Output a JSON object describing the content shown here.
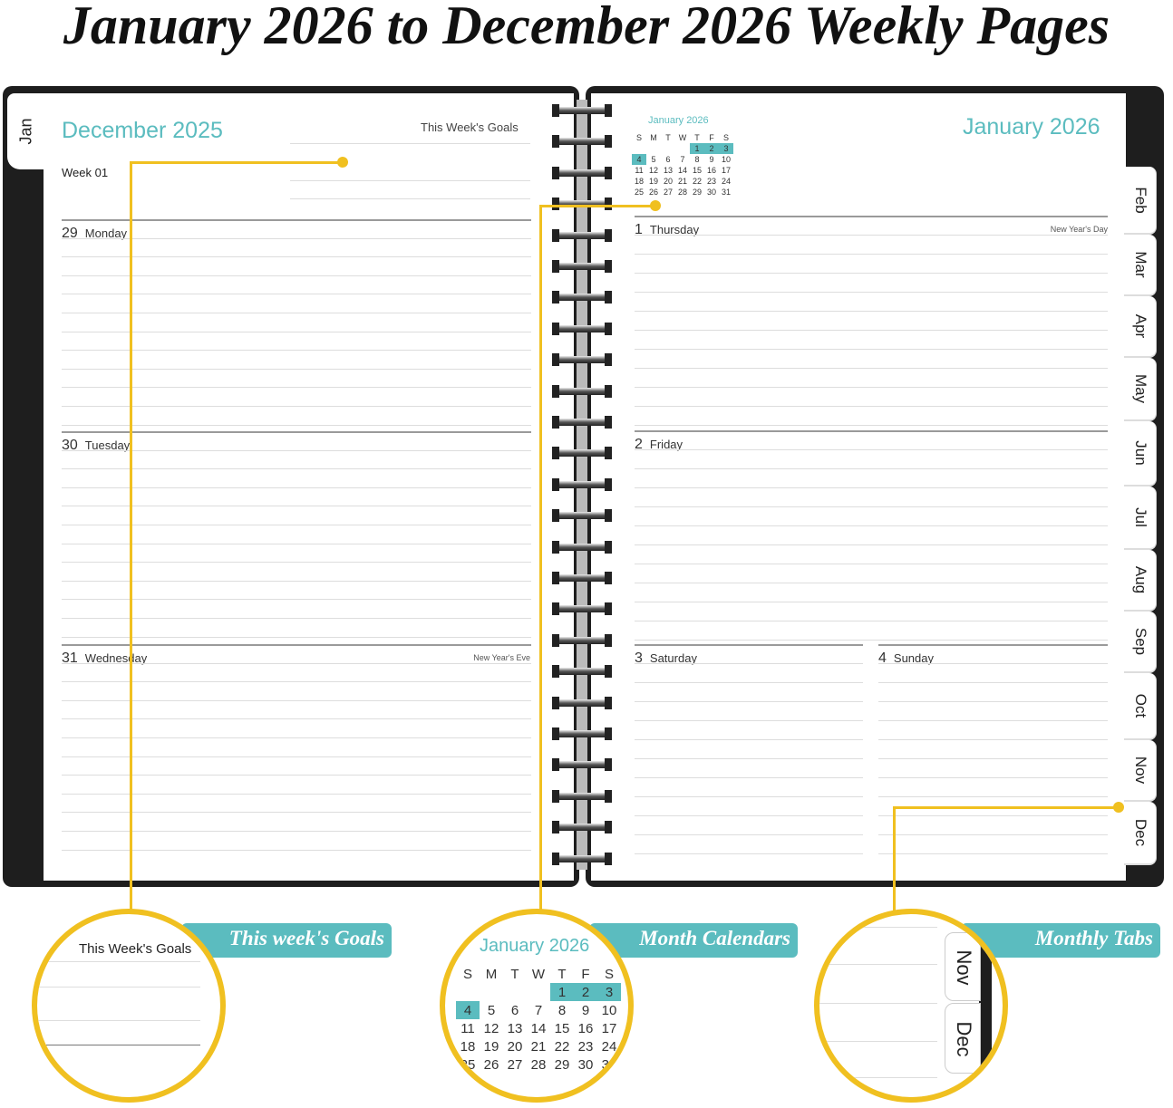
{
  "title": "January 2026 to December 2026 Weekly Pages",
  "accent_color": "#5bbcbf",
  "callout_color": "#f0c020",
  "left_page": {
    "tab": "Jan",
    "month": "December 2025",
    "goals_label": "This Week's Goals",
    "week": "Week 01",
    "days": [
      {
        "num": "29",
        "name": "Monday",
        "holiday": ""
      },
      {
        "num": "30",
        "name": "Tuesday",
        "holiday": ""
      },
      {
        "num": "31",
        "name": "Wednesday",
        "holiday": "New Year's Eve"
      }
    ]
  },
  "right_page": {
    "month": "January 2026",
    "mini_calendar": {
      "title": "January 2026",
      "weekdays": [
        "S",
        "M",
        "T",
        "W",
        "T",
        "F",
        "S"
      ],
      "weeks": [
        [
          "",
          "",
          "",
          "",
          "1",
          "2",
          "3"
        ],
        [
          "4",
          "5",
          "6",
          "7",
          "8",
          "9",
          "10"
        ],
        [
          "11",
          "12",
          "13",
          "14",
          "15",
          "16",
          "17"
        ],
        [
          "18",
          "19",
          "20",
          "21",
          "22",
          "23",
          "24"
        ],
        [
          "25",
          "26",
          "27",
          "28",
          "29",
          "30",
          "31"
        ]
      ],
      "highlighted": [
        "1",
        "2",
        "3",
        "4"
      ]
    },
    "days": [
      {
        "num": "1",
        "name": "Thursday",
        "holiday": "New Year's Day"
      },
      {
        "num": "2",
        "name": "Friday",
        "holiday": ""
      },
      {
        "num": "3",
        "name": "Saturday",
        "holiday": ""
      },
      {
        "num": "4",
        "name": "Sunday",
        "holiday": ""
      }
    ],
    "tabs": [
      "Feb",
      "Mar",
      "Apr",
      "May",
      "Jun",
      "Jul",
      "Aug",
      "Sep",
      "Oct",
      "Nov",
      "Dec"
    ]
  },
  "callouts": [
    {
      "label": "This week's Goals",
      "zoom_text": "This Week's Goals"
    },
    {
      "label": "Month Calendars",
      "zoom_text": "January 2026"
    },
    {
      "label": "Monthly Tabs",
      "zoom_tabs": [
        "Nov",
        "Dec"
      ]
    }
  ]
}
